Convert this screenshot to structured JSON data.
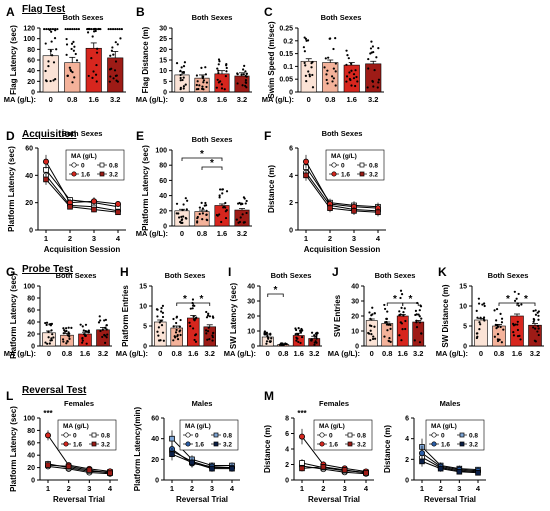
{
  "colors": {
    "c0": "#fbe3d6",
    "c08": "#f4b29a",
    "c16": "#d7261e",
    "c32": "#9e1b16",
    "male08": "#7fa6d6",
    "male16": "#2b5ea8",
    "male32": "#0b1f47",
    "axis": "#000000",
    "dot": "#000000"
  },
  "headers": {
    "flag_test": "Flag Test",
    "acquisition": "Acquisition",
    "probe_test": "Probe Test",
    "reversal_test": "Reversal Test"
  },
  "ma_label": "MA (g/L):",
  "doses": [
    "0",
    "0.8",
    "1.6",
    "3.2"
  ],
  "legend_title": "MA (g/L)",
  "chart_data": [
    {
      "id": "A",
      "type": "bar",
      "title": "Both Sexes",
      "ylabel": "Flag Latency (sec)",
      "categories": [
        "0",
        "0.8",
        "1.6",
        "3.2"
      ],
      "values": [
        68,
        55,
        82,
        64
      ],
      "errors": [
        12,
        10,
        10,
        12
      ],
      "ylim": [
        0,
        120
      ],
      "yticks": [
        0,
        20,
        40,
        60,
        80,
        100,
        120
      ],
      "sig": []
    },
    {
      "id": "B",
      "type": "bar",
      "title": "Both Sexes",
      "ylabel": "Flag Distance (m)",
      "categories": [
        "0",
        "0.8",
        "1.6",
        "3.2"
      ],
      "values": [
        8,
        6.5,
        8.5,
        7.5
      ],
      "errors": [
        1.5,
        1.5,
        1.5,
        1.5
      ],
      "ylim": [
        0,
        30
      ],
      "yticks": [
        0,
        5,
        10,
        15,
        20,
        25,
        30
      ],
      "sig": []
    },
    {
      "id": "C",
      "type": "bar",
      "title": "Both Sexes",
      "ylabel": "Swim Speed (m/sec)",
      "categories": [
        "0",
        "0.8",
        "1.6",
        "3.2"
      ],
      "values": [
        0.12,
        0.115,
        0.105,
        0.11
      ],
      "errors": [
        0.01,
        0.01,
        0.01,
        0.01
      ],
      "ylim": [
        0,
        0.25
      ],
      "yticks": [
        0,
        0.05,
        0.1,
        0.15,
        0.2,
        0.25
      ],
      "sig": []
    },
    {
      "id": "D",
      "type": "line",
      "title": "Both Sexes",
      "ylabel": "Platform Latency (sec)",
      "xlabel": "Acquisition Session",
      "x": [
        1,
        2,
        3,
        4
      ],
      "xticks": [
        "1",
        "2",
        "3",
        "4"
      ],
      "ylim": [
        0,
        60
      ],
      "yticks": [
        0,
        20,
        40,
        60
      ],
      "legend": {
        "title": "MA (g/L)",
        "position": "top-right"
      },
      "series": [
        {
          "name": "0",
          "color": "#ffffff",
          "marker": "circle",
          "values": [
            40,
            18,
            17,
            14
          ],
          "errors": [
            4,
            2,
            2,
            2
          ]
        },
        {
          "name": "0.8",
          "color": "#ffffff",
          "marker": "square",
          "values": [
            44,
            22,
            20,
            17
          ],
          "errors": [
            4,
            2,
            2,
            2
          ]
        },
        {
          "name": "1.6",
          "color": "#d7261e",
          "marker": "circle",
          "values": [
            50,
            20,
            21,
            19
          ],
          "errors": [
            5,
            3,
            3,
            2
          ]
        },
        {
          "name": "3.2",
          "color": "#9e1b16",
          "marker": "square",
          "values": [
            37,
            17,
            15,
            13
          ],
          "errors": [
            4,
            2,
            2,
            2
          ]
        }
      ]
    },
    {
      "id": "E",
      "type": "bar",
      "title": "Both Sexes",
      "ylabel": "Platform Latency (sec)",
      "categories": [
        "0",
        "0.8",
        "1.6",
        "3.2"
      ],
      "values": [
        20,
        19,
        27,
        21
      ],
      "errors": [
        2,
        2,
        2,
        2
      ],
      "ylim": [
        0,
        100
      ],
      "yticks": [
        0,
        20,
        40,
        60,
        80,
        100
      ],
      "sig": [
        {
          "from": 0,
          "to": 2,
          "label": "*",
          "level": 2
        },
        {
          "from": 1,
          "to": 2,
          "label": "*",
          "level": 1
        }
      ]
    },
    {
      "id": "F",
      "type": "line",
      "title": "Both Sexes",
      "ylabel": "Distance  (m)",
      "xlabel": "Acquisition Session",
      "x": [
        1,
        2,
        3,
        4
      ],
      "xticks": [
        "1",
        "2",
        "3",
        "4"
      ],
      "ylim": [
        0,
        6
      ],
      "yticks": [
        0,
        2,
        4,
        6
      ],
      "legend": {
        "title": "MA (g/L)",
        "position": "top-right"
      },
      "series": [
        {
          "name": "0",
          "color": "#ffffff",
          "marker": "circle",
          "values": [
            4.2,
            1.8,
            1.5,
            1.4
          ],
          "errors": [
            0.4,
            0.3,
            0.3,
            0.3
          ]
        },
        {
          "name": "0.8",
          "color": "#ffffff",
          "marker": "square",
          "values": [
            4.6,
            2.0,
            1.8,
            1.7
          ],
          "errors": [
            0.4,
            0.3,
            0.3,
            0.3
          ]
        },
        {
          "name": "1.6",
          "color": "#d7261e",
          "marker": "circle",
          "values": [
            5.0,
            1.9,
            1.7,
            1.6
          ],
          "errors": [
            0.5,
            0.3,
            0.3,
            0.3
          ]
        },
        {
          "name": "3.2",
          "color": "#9e1b16",
          "marker": "square",
          "values": [
            4.0,
            1.6,
            1.4,
            1.3
          ],
          "errors": [
            0.4,
            0.3,
            0.3,
            0.3
          ]
        }
      ]
    },
    {
      "id": "G",
      "type": "bar",
      "title": "Both Sexes",
      "ylabel": "Platform Latency (sec)",
      "categories": [
        "0",
        "0.8",
        "1.6",
        "3.2"
      ],
      "values": [
        22,
        18,
        20,
        27
      ],
      "errors": [
        3,
        3,
        3,
        4
      ],
      "ylim": [
        0,
        100
      ],
      "yticks": [
        0,
        20,
        40,
        60,
        80,
        100
      ],
      "sig": []
    },
    {
      "id": "H",
      "type": "bar",
      "title": "Both Sexes",
      "ylabel": "Platform Entries",
      "categories": [
        "0",
        "0.8",
        "1.6",
        "3.2"
      ],
      "values": [
        6,
        4.5,
        7,
        4.8
      ],
      "errors": [
        0.5,
        0.5,
        0.6,
        0.5
      ],
      "ylim": [
        0,
        15
      ],
      "yticks": [
        0,
        5,
        10,
        15
      ],
      "sig": [
        {
          "from": 1,
          "to": 2,
          "label": "*",
          "level": 1
        },
        {
          "from": 2,
          "to": 3,
          "label": "*",
          "level": 1
        }
      ]
    },
    {
      "id": "I",
      "type": "bar",
      "title": "Both Sexes",
      "ylabel": "SW Latency (sec)",
      "categories": [
        "0",
        "0.8",
        "1.6",
        "3.2"
      ],
      "values": [
        6,
        1,
        7,
        5
      ],
      "errors": [
        2,
        0.5,
        1.5,
        1.5
      ],
      "ylim": [
        0,
        40
      ],
      "yticks": [
        0,
        10,
        20,
        30,
        40
      ],
      "sig": [
        {
          "from": 0,
          "to": 1,
          "label": "*",
          "level": 2
        }
      ]
    },
    {
      "id": "J",
      "type": "bar",
      "title": "Both Sexes",
      "ylabel": "SW Entries",
      "categories": [
        "0",
        "0.8",
        "1.6",
        "3.2"
      ],
      "values": [
        17,
        15,
        20,
        16
      ],
      "errors": [
        1,
        1,
        1,
        1
      ],
      "ylim": [
        0,
        40
      ],
      "yticks": [
        0,
        10,
        20,
        30,
        40
      ],
      "sig": [
        {
          "from": 1,
          "to": 2,
          "label": "*",
          "level": 1
        },
        {
          "from": 2,
          "to": 3,
          "label": "*",
          "level": 1
        }
      ]
    },
    {
      "id": "K",
      "type": "bar",
      "title": "Both Sexes",
      "ylabel": "SW Distance (m)",
      "categories": [
        "0",
        "0.8",
        "1.6",
        "3.2"
      ],
      "values": [
        6.5,
        5,
        7.5,
        5.2
      ],
      "errors": [
        0.4,
        0.4,
        0.5,
        0.4
      ],
      "ylim": [
        0,
        15
      ],
      "yticks": [
        0,
        5,
        10,
        15
      ],
      "sig": [
        {
          "from": 1,
          "to": 2,
          "label": "*",
          "level": 1
        },
        {
          "from": 2,
          "to": 3,
          "label": "*",
          "level": 1
        }
      ]
    },
    {
      "id": "L",
      "type": "line",
      "title": "Females",
      "ylabel": "Platform Latency (sec)",
      "xlabel": "Reversal Trial",
      "x": [
        1,
        2,
        3,
        4
      ],
      "xticks": [
        "1",
        "2",
        "3",
        "4"
      ],
      "ylim": [
        0,
        100
      ],
      "yticks": [
        0,
        20,
        40,
        60,
        80,
        100
      ],
      "legend": {
        "title": "MA (g/L)",
        "position": "top-right"
      },
      "annotation": {
        "text": "***",
        "x": 1
      },
      "series": [
        {
          "name": "0",
          "color": "#ffffff",
          "marker": "circle",
          "values": [
            22,
            18,
            12,
            10
          ],
          "errors": [
            4,
            3,
            3,
            2
          ]
        },
        {
          "name": "0.8",
          "color": "#ffffff",
          "marker": "square",
          "values": [
            26,
            20,
            14,
            13
          ],
          "errors": [
            5,
            3,
            3,
            2
          ]
        },
        {
          "name": "1.6",
          "color": "#d7261e",
          "marker": "circle",
          "values": [
            72,
            24,
            18,
            14
          ],
          "errors": [
            8,
            4,
            3,
            3
          ]
        },
        {
          "name": "3.2",
          "color": "#9e1b16",
          "marker": "square",
          "values": [
            24,
            22,
            16,
            11
          ],
          "errors": [
            5,
            4,
            3,
            2
          ]
        }
      ]
    },
    {
      "id": "L2",
      "type": "line",
      "title": "Males",
      "ylabel": "Platform Latency(min)",
      "xlabel": "Reversal Trial",
      "x": [
        1,
        2,
        3,
        4
      ],
      "xticks": [
        "1",
        "2",
        "3",
        "4"
      ],
      "ylim": [
        0,
        60
      ],
      "yticks": [
        0,
        20,
        40,
        60
      ],
      "legend": {
        "title": "MA (g/L)",
        "position": "top-right"
      },
      "series": [
        {
          "name": "0",
          "color": "#ffffff",
          "marker": "circle",
          "values": [
            28,
            18,
            12,
            12
          ],
          "errors": [
            6,
            4,
            3,
            3
          ]
        },
        {
          "name": "0.8",
          "color": "#7fa6d6",
          "marker": "square",
          "values": [
            40,
            20,
            14,
            14
          ],
          "errors": [
            8,
            4,
            3,
            3
          ]
        },
        {
          "name": "1.6",
          "color": "#2b5ea8",
          "marker": "circle",
          "values": [
            30,
            16,
            13,
            12
          ],
          "errors": [
            7,
            4,
            3,
            3
          ]
        },
        {
          "name": "3.2",
          "color": "#0b1f47",
          "marker": "square",
          "values": [
            25,
            17,
            11,
            11
          ],
          "errors": [
            6,
            4,
            3,
            3
          ]
        }
      ]
    },
    {
      "id": "M",
      "type": "line",
      "title": "Females",
      "ylabel": "Distance (m)",
      "xlabel": "Reversal Trial",
      "x": [
        1,
        2,
        3,
        4
      ],
      "xticks": [
        "1",
        "2",
        "3",
        "4"
      ],
      "ylim": [
        0,
        8
      ],
      "yticks": [
        0,
        2,
        4,
        6,
        8
      ],
      "legend": {
        "title": "MA (g/L)",
        "position": "top-right"
      },
      "annotation": {
        "text": "***",
        "x": 1
      },
      "series": [
        {
          "name": "0",
          "color": "#ffffff",
          "marker": "circle",
          "values": [
            1.8,
            1.4,
            1.0,
            0.8
          ],
          "errors": [
            0.4,
            0.3,
            0.2,
            0.2
          ]
        },
        {
          "name": "0.8",
          "color": "#ffffff",
          "marker": "square",
          "values": [
            2.2,
            1.6,
            1.2,
            1.0
          ],
          "errors": [
            0.5,
            0.3,
            0.3,
            0.2
          ]
        },
        {
          "name": "1.6",
          "color": "#d7261e",
          "marker": "circle",
          "values": [
            5.6,
            2.0,
            1.5,
            1.1
          ],
          "errors": [
            1.0,
            0.4,
            0.3,
            0.3
          ]
        },
        {
          "name": "3.2",
          "color": "#9e1b16",
          "marker": "square",
          "values": [
            1.5,
            1.7,
            1.3,
            0.9
          ],
          "errors": [
            0.4,
            0.3,
            0.3,
            0.2
          ]
        }
      ]
    },
    {
      "id": "M2",
      "type": "line",
      "title": "Males",
      "ylabel": "Distance (m)",
      "xlabel": "Reversal Trial",
      "x": [
        1,
        2,
        3,
        4
      ],
      "xticks": [
        "1",
        "2",
        "3",
        "4"
      ],
      "ylim": [
        0,
        6
      ],
      "yticks": [
        0,
        2,
        4,
        6
      ],
      "legend": {
        "title": "MA (g/L)",
        "position": "top-right"
      },
      "series": [
        {
          "name": "0",
          "color": "#ffffff",
          "marker": "circle",
          "values": [
            2.2,
            1.2,
            0.9,
            0.8
          ],
          "errors": [
            0.5,
            0.3,
            0.2,
            0.2
          ]
        },
        {
          "name": "0.8",
          "color": "#7fa6d6",
          "marker": "square",
          "values": [
            3.2,
            1.4,
            1.1,
            1.0
          ],
          "errors": [
            0.8,
            0.3,
            0.3,
            0.2
          ]
        },
        {
          "name": "1.6",
          "color": "#2b5ea8",
          "marker": "circle",
          "values": [
            2.6,
            1.3,
            1.0,
            0.9
          ],
          "errors": [
            0.7,
            0.3,
            0.2,
            0.2
          ]
        },
        {
          "name": "3.2",
          "color": "#0b1f47",
          "marker": "square",
          "values": [
            1.8,
            1.1,
            0.8,
            0.7
          ],
          "errors": [
            0.5,
            0.3,
            0.2,
            0.2
          ]
        }
      ]
    }
  ]
}
